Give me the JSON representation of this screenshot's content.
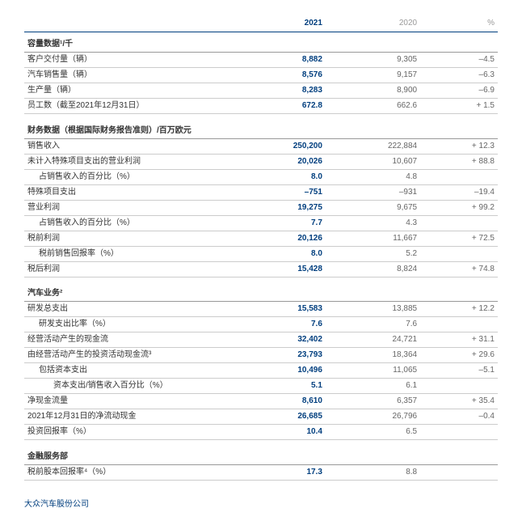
{
  "header": {
    "y2021": "2021",
    "y2020": "2020",
    "pct": "%"
  },
  "sections": [
    {
      "title": "容量数据¹/千",
      "rows": [
        {
          "label": "客户交付量（辆）",
          "y2021": "8,882",
          "y2020": "9,305",
          "pct": "–4.5"
        },
        {
          "label": "汽车销售量（辆）",
          "y2021": "8,576",
          "y2020": "9,157",
          "pct": "–6.3"
        },
        {
          "label": "生产量（辆）",
          "y2021": "8,283",
          "y2020": "8,900",
          "pct": "–6.9"
        },
        {
          "label": "员工数（截至2021年12月31日）",
          "y2021": "672.8",
          "y2020": "662.6",
          "pct": "+ 1.5"
        }
      ]
    },
    {
      "title": "财务数据（根据国际财务报告准则）/百万欧元",
      "rows": [
        {
          "label": "销售收入",
          "y2021": "250,200",
          "y2020": "222,884",
          "pct": "+ 12.3"
        },
        {
          "label": "未计入特殊项目支出的营业利润",
          "y2021": "20,026",
          "y2020": "10,607",
          "pct": "+ 88.8"
        },
        {
          "label": "占销售收入的百分比（%）",
          "indent": 1,
          "y2021": "8.0",
          "y2020": "4.8",
          "pct": ""
        },
        {
          "label": "特殊项目支出",
          "y2021": "–751",
          "y2020": "–931",
          "pct": "–19.4"
        },
        {
          "label": "营业利润",
          "y2021": "19,275",
          "y2020": "9,675",
          "pct": "+ 99.2"
        },
        {
          "label": "占销售收入的百分比（%）",
          "indent": 1,
          "y2021": "7.7",
          "y2020": "4.3",
          "pct": ""
        },
        {
          "label": "税前利润",
          "y2021": "20,126",
          "y2020": "11,667",
          "pct": "+ 72.5"
        },
        {
          "label": "税前销售回报率（%）",
          "indent": 1,
          "y2021": "8.0",
          "y2020": "5.2",
          "pct": ""
        },
        {
          "label": "税后利润",
          "y2021": "15,428",
          "y2020": "8,824",
          "pct": "+ 74.8"
        }
      ]
    },
    {
      "title": "汽车业务²",
      "rows": [
        {
          "label": "研发总支出",
          "y2021": "15,583",
          "y2020": "13,885",
          "pct": "+ 12.2"
        },
        {
          "label": "研发支出比率（%）",
          "indent": 1,
          "y2021": "7.6",
          "y2020": "7.6",
          "pct": ""
        },
        {
          "label": "经营活动产生的现金流",
          "y2021": "32,402",
          "y2020": "24,721",
          "pct": "+ 31.1"
        },
        {
          "label": "由经营活动产生的投资活动现金流³",
          "y2021": "23,793",
          "y2020": "18,364",
          "pct": "+ 29.6"
        },
        {
          "label": "包括资本支出",
          "indent": 1,
          "y2021": "10,496",
          "y2020": "11,065",
          "pct": "–5.1"
        },
        {
          "label": "资本支出/销售收入百分比（%）",
          "indent": 2,
          "y2021": "5.1",
          "y2020": "6.1",
          "pct": ""
        },
        {
          "label": "净现金流量",
          "y2021": "8,610",
          "y2020": "6,357",
          "pct": "+ 35.4"
        },
        {
          "label": "2021年12月31日的净流动现金",
          "y2021": "26,685",
          "y2020": "26,796",
          "pct": "–0.4"
        },
        {
          "label": "投资回报率（%）",
          "y2021": "10.4",
          "y2020": "6.5",
          "pct": ""
        }
      ]
    },
    {
      "title": "金融服务部",
      "rows": [
        {
          "label": "税前股本回报率⁴（%）",
          "y2021": "17.3",
          "y2020": "8.8",
          "pct": ""
        }
      ]
    }
  ],
  "footer": "大众汽车股份公司"
}
